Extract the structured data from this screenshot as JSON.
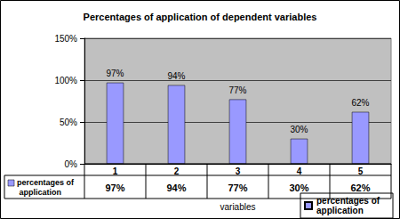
{
  "chart_data": {
    "type": "bar",
    "title": "Percentages of application of dependent variables",
    "x_label": "variables",
    "categories": [
      "1",
      "2",
      "3",
      "4",
      "5"
    ],
    "series": [
      {
        "name": "percentages of application",
        "color": "#9999ff",
        "values": [
          97,
          94,
          77,
          30,
          62
        ],
        "value_labels": [
          "97%",
          "94%",
          "77%",
          "30%",
          "62%"
        ]
      }
    ],
    "ylim": [
      0,
      150
    ],
    "yticks": [
      {
        "value": 0,
        "label": "0%"
      },
      {
        "value": 50,
        "label": "50%"
      },
      {
        "value": 100,
        "label": "100%"
      },
      {
        "value": 150,
        "label": "150%"
      }
    ],
    "grid": true,
    "data_labels": true,
    "legend": "lower right"
  }
}
